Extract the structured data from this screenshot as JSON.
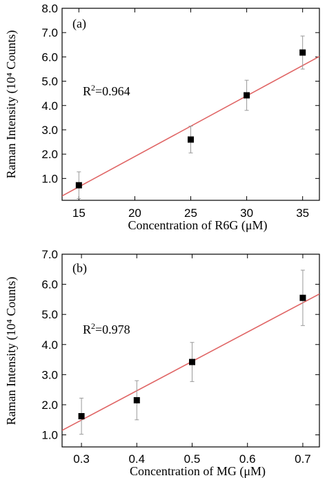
{
  "chart_data": [
    {
      "type": "scatter",
      "panel_label": "(a)",
      "xlabel": "Concentration of R6G (μM)",
      "ylabel": "Raman Intensity (10⁴ Counts)",
      "xlim": [
        13.5,
        36.5
      ],
      "ylim": [
        0.1,
        8.0
      ],
      "xticks": [
        15,
        20,
        25,
        30,
        35
      ],
      "yticks": [
        1.0,
        2.0,
        3.0,
        4.0,
        5.0,
        6.0,
        7.0,
        8.0
      ],
      "ytick_labels": [
        "1.0",
        "2.0",
        "3.0",
        "4.0",
        "5.0",
        "6.0",
        "7.0",
        "8.0"
      ],
      "points": [
        {
          "x": 15,
          "y": 0.72,
          "err": 0.55
        },
        {
          "x": 25,
          "y": 2.6,
          "err": 0.55
        },
        {
          "x": 30,
          "y": 4.42,
          "err": 0.62
        },
        {
          "x": 35,
          "y": 6.18,
          "err": 0.68
        }
      ],
      "fit_line": {
        "x": [
          13.5,
          36.5
        ],
        "y": [
          0.28,
          6.02
        ]
      },
      "annotation": {
        "R": "R",
        "sup": "2",
        "val": "=0.964"
      },
      "colors": {
        "fit": "#e06666",
        "points": "#000000",
        "errorbars": "#999999"
      }
    },
    {
      "type": "scatter",
      "panel_label": "(b)",
      "xlabel": "Concentration of MG (μM)",
      "ylabel": "Raman Intensity (10⁴ Counts)",
      "xlim": [
        0.265,
        0.73
      ],
      "ylim": [
        0.6,
        7.0
      ],
      "xticks": [
        0.3,
        0.4,
        0.5,
        0.6,
        0.7
      ],
      "xtick_labels": [
        "0.3",
        "0.4",
        "0.5",
        "0.6",
        "0.7"
      ],
      "yticks": [
        1.0,
        2.0,
        3.0,
        4.0,
        5.0,
        6.0,
        7.0
      ],
      "ytick_labels": [
        "1.0",
        "2.0",
        "3.0",
        "4.0",
        "5.0",
        "6.0",
        "7.0"
      ],
      "points": [
        {
          "x": 0.3,
          "y": 1.62,
          "err": 0.6
        },
        {
          "x": 0.4,
          "y": 2.15,
          "err": 0.65
        },
        {
          "x": 0.5,
          "y": 3.42,
          "err": 0.65
        },
        {
          "x": 0.7,
          "y": 5.55,
          "err": 0.92
        }
      ],
      "fit_line": {
        "x": [
          0.265,
          0.73
        ],
        "y": [
          1.15,
          5.68
        ]
      },
      "annotation": {
        "R": "R",
        "sup": "2",
        "val": "=0.978"
      },
      "colors": {
        "fit": "#e06666",
        "points": "#000000",
        "errorbars": "#999999"
      }
    }
  ]
}
